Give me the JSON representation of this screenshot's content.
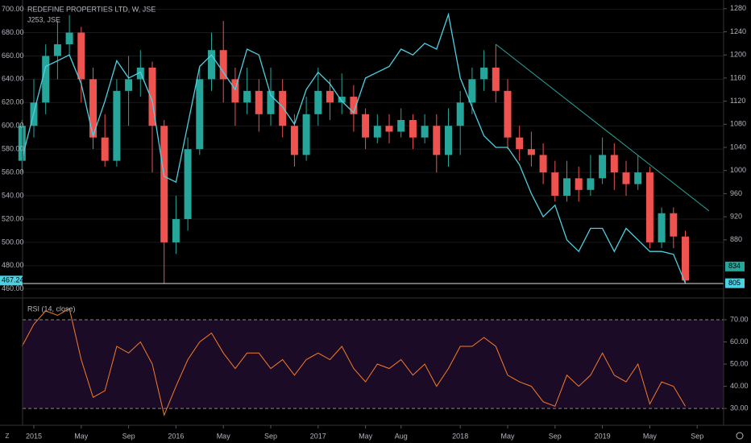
{
  "chart_data": [
    {
      "type": "candlestick",
      "title": "REDEFINE PROPERTIES LTD, W, JSE",
      "up_color": "#26a69a",
      "down_color": "#ef5350",
      "x": [
        "2014-12",
        "2015-01",
        "2015-02",
        "2015-03",
        "2015-04",
        "2015-05",
        "2015-06",
        "2015-07",
        "2015-08",
        "2015-09",
        "2015-10",
        "2015-11",
        "2015-12",
        "2016-01",
        "2016-02",
        "2016-03",
        "2016-04",
        "2016-05",
        "2016-06",
        "2016-07",
        "2016-08",
        "2016-09",
        "2016-10",
        "2016-11",
        "2016-12",
        "2017-01",
        "2017-02",
        "2017-03",
        "2017-04",
        "2017-05",
        "2017-06",
        "2017-07",
        "2017-08",
        "2017-09",
        "2017-10",
        "2017-11",
        "2017-12",
        "2018-01",
        "2018-02",
        "2018-03",
        "2018-04",
        "2018-05",
        "2018-06",
        "2018-07",
        "2018-08",
        "2018-09",
        "2018-10",
        "2018-11",
        "2018-12",
        "2019-01",
        "2019-02",
        "2019-03",
        "2019-04",
        "2019-05",
        "2019-06",
        "2019-07",
        "2019-08"
      ],
      "open": [
        570,
        600,
        620,
        660,
        670,
        680,
        640,
        590,
        570,
        630,
        640,
        650,
        600,
        500,
        520,
        580,
        640,
        665,
        640,
        620,
        630,
        610,
        630,
        600,
        575,
        610,
        630,
        620,
        625,
        610,
        590,
        600,
        595,
        605,
        590,
        600,
        575,
        600,
        620,
        640,
        650,
        630,
        590,
        580,
        575,
        560,
        540,
        555,
        545,
        555,
        575,
        560,
        550,
        560,
        500,
        525,
        505
      ],
      "high": [
        605,
        640,
        670,
        690,
        695,
        685,
        650,
        610,
        640,
        660,
        665,
        655,
        605,
        540,
        590,
        650,
        680,
        690,
        650,
        650,
        640,
        650,
        640,
        610,
        625,
        650,
        640,
        645,
        635,
        615,
        610,
        610,
        615,
        610,
        610,
        610,
        615,
        630,
        650,
        665,
        670,
        640,
        600,
        595,
        585,
        570,
        570,
        565,
        575,
        590,
        585,
        570,
        575,
        565,
        530,
        530,
        510
      ],
      "low": [
        560,
        590,
        610,
        640,
        660,
        620,
        580,
        565,
        565,
        600,
        625,
        560,
        465,
        490,
        510,
        575,
        630,
        620,
        600,
        610,
        595,
        600,
        590,
        565,
        570,
        600,
        605,
        610,
        595,
        580,
        585,
        585,
        590,
        580,
        585,
        560,
        565,
        575,
        610,
        630,
        620,
        580,
        570,
        565,
        550,
        535,
        535,
        535,
        540,
        550,
        545,
        540,
        545,
        495,
        495,
        495,
        465
      ],
      "close": [
        600,
        620,
        660,
        670,
        680,
        640,
        590,
        570,
        630,
        640,
        650,
        600,
        500,
        520,
        580,
        640,
        665,
        640,
        620,
        630,
        610,
        630,
        600,
        575,
        610,
        630,
        620,
        625,
        610,
        590,
        600,
        595,
        605,
        590,
        600,
        575,
        600,
        620,
        640,
        650,
        630,
        590,
        580,
        575,
        560,
        540,
        555,
        545,
        555,
        575,
        560,
        550,
        560,
        500,
        525,
        505,
        467.24
      ],
      "ylim": [
        455,
        708
      ],
      "yticks": [
        {
          "value": 460,
          "label": "460.00"
        },
        {
          "value": 480,
          "label": "480.00"
        },
        {
          "value": 500,
          "label": "500.00"
        },
        {
          "value": 520,
          "label": "520.00"
        },
        {
          "value": 540,
          "label": "540.00"
        },
        {
          "value": 560,
          "label": "560.00"
        },
        {
          "value": 580,
          "label": "580.00"
        },
        {
          "value": 600,
          "label": "600.00"
        },
        {
          "value": 620,
          "label": "620.00"
        },
        {
          "value": 640,
          "label": "640.00"
        },
        {
          "value": 660,
          "label": "660.00"
        },
        {
          "value": 680,
          "label": "680.00"
        },
        {
          "value": 700,
          "label": "700.00"
        }
      ],
      "y2lim": [
        785,
        1295
      ],
      "y2ticks": [
        880,
        920,
        960,
        1000,
        1040,
        1080,
        1120,
        1160,
        1200,
        1240,
        1280
      ],
      "y2_marker": 834,
      "series": [
        {
          "name": "J253, JSE",
          "color": "#4dd0e1",
          "axis": "y2",
          "values": [
            1020,
            1100,
            1180,
            1190,
            1200,
            1150,
            1060,
            1120,
            1190,
            1160,
            1170,
            1120,
            990,
            980,
            1080,
            1180,
            1200,
            1170,
            1140,
            1210,
            1200,
            1130,
            1110,
            1080,
            1140,
            1170,
            1150,
            1120,
            1100,
            1160,
            1170,
            1180,
            1210,
            1200,
            1220,
            1210,
            1270,
            1160,
            1110,
            1060,
            1040,
            1040,
            1010,
            960,
            920,
            940,
            880,
            860,
            900,
            900,
            860,
            900,
            880,
            860,
            860,
            855,
            805
          ]
        }
      ],
      "trendline": {
        "x": [
          "2018-04",
          "2019-10"
        ],
        "values": [
          670,
          527
        ],
        "color": "#26a69a"
      }
    },
    {
      "type": "line",
      "title": "RSI (14, close)",
      "color": "#f57c2b",
      "band": [
        30,
        70
      ],
      "band_color": "#1b0b26",
      "x": [
        "2014-12",
        "2015-01",
        "2015-02",
        "2015-03",
        "2015-04",
        "2015-05",
        "2015-06",
        "2015-07",
        "2015-08",
        "2015-09",
        "2015-10",
        "2015-11",
        "2015-12",
        "2016-01",
        "2016-02",
        "2016-03",
        "2016-04",
        "2016-05",
        "2016-06",
        "2016-07",
        "2016-08",
        "2016-09",
        "2016-10",
        "2016-11",
        "2016-12",
        "2017-01",
        "2017-02",
        "2017-03",
        "2017-04",
        "2017-05",
        "2017-06",
        "2017-07",
        "2017-08",
        "2017-09",
        "2017-10",
        "2017-11",
        "2017-12",
        "2018-01",
        "2018-02",
        "2018-03",
        "2018-04",
        "2018-05",
        "2018-06",
        "2018-07",
        "2018-08",
        "2018-09",
        "2018-10",
        "2018-11",
        "2018-12",
        "2019-01",
        "2019-02",
        "2019-03",
        "2019-04",
        "2019-05",
        "2019-06",
        "2019-07",
        "2019-08"
      ],
      "values": [
        58,
        68,
        74,
        72,
        75,
        52,
        35,
        38,
        58,
        55,
        60,
        50,
        27,
        40,
        52,
        60,
        64,
        55,
        48,
        55,
        55,
        48,
        52,
        45,
        52,
        55,
        52,
        58,
        48,
        42,
        50,
        48,
        52,
        45,
        50,
        40,
        48,
        58,
        58,
        62,
        58,
        45,
        42,
        40,
        33,
        31,
        45,
        40,
        45,
        55,
        45,
        42,
        50,
        32,
        42,
        40,
        31
      ],
      "ylim": [
        23.5,
        79.8
      ],
      "yticks": [
        {
          "value": 30,
          "label": "30.00"
        },
        {
          "value": 40,
          "label": "40.00"
        },
        {
          "value": 50,
          "label": "50.00"
        },
        {
          "value": 60,
          "label": "60.00"
        },
        {
          "value": 70,
          "label": "70.00"
        }
      ],
      "xticks": [
        {
          "value": "2015-01",
          "label": "2015"
        },
        {
          "value": "2015-05",
          "label": "May"
        },
        {
          "value": "2015-09",
          "label": "Sep"
        },
        {
          "value": "2016-01",
          "label": "2016"
        },
        {
          "value": "2016-05",
          "label": "May"
        },
        {
          "value": "2016-09",
          "label": "Sep"
        },
        {
          "value": "2017-01",
          "label": "2017"
        },
        {
          "value": "2017-05",
          "label": "May"
        },
        {
          "value": "2017-08",
          "label": "Aug"
        },
        {
          "value": "2018-01",
          "label": "2018"
        },
        {
          "value": "2018-05",
          "label": "May"
        },
        {
          "value": "2018-09",
          "label": "Sep"
        },
        {
          "value": "2019-01",
          "label": "2019"
        },
        {
          "value": "2019-05",
          "label": "May"
        },
        {
          "value": "2019-09",
          "label": "Sep"
        }
      ]
    }
  ]
}
